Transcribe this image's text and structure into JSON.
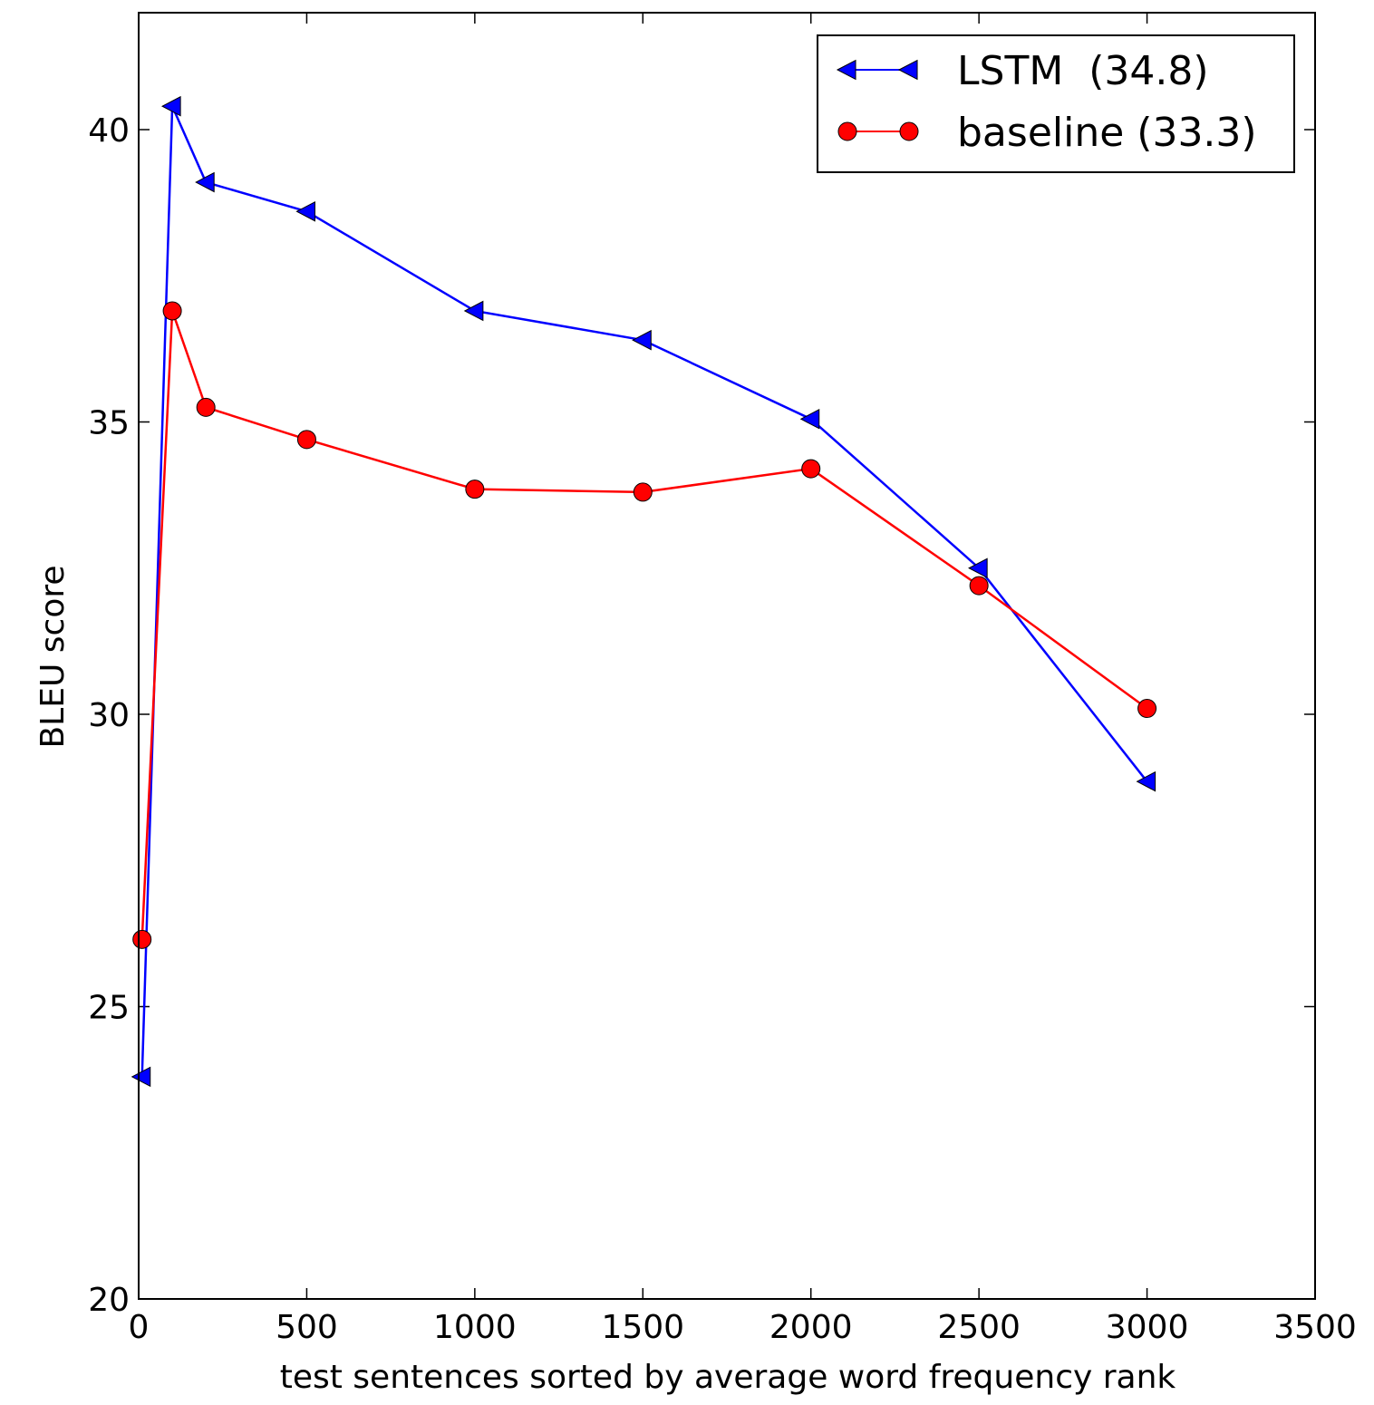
{
  "chart_data": {
    "type": "line",
    "title": "",
    "xlabel": "test sentences sorted by average word frequency rank",
    "ylabel": "BLEU score",
    "xlim": [
      0,
      3500
    ],
    "ylim": [
      20,
      42
    ],
    "x_ticks": [
      0,
      500,
      1000,
      1500,
      2000,
      2500,
      3000,
      3500
    ],
    "y_ticks": [
      20,
      25,
      30,
      35,
      40
    ],
    "grid": false,
    "legend_position": "top-right",
    "series": [
      {
        "name": "LSTM  (34.8)",
        "color": "#0000ff",
        "marker": "triangle-left",
        "x": [
          10,
          100,
          200,
          500,
          1000,
          1500,
          2000,
          2500,
          3000
        ],
        "y": [
          23.8,
          40.4,
          39.1,
          38.6,
          36.9,
          36.4,
          35.05,
          32.5,
          28.85
        ]
      },
      {
        "name": "baseline (33.3)",
        "color": "#ff0000",
        "marker": "circle",
        "x": [
          10,
          100,
          200,
          500,
          1000,
          1500,
          2000,
          2500,
          3000
        ],
        "y": [
          26.15,
          36.9,
          35.25,
          34.7,
          33.85,
          33.8,
          34.2,
          32.2,
          30.1
        ]
      }
    ]
  }
}
